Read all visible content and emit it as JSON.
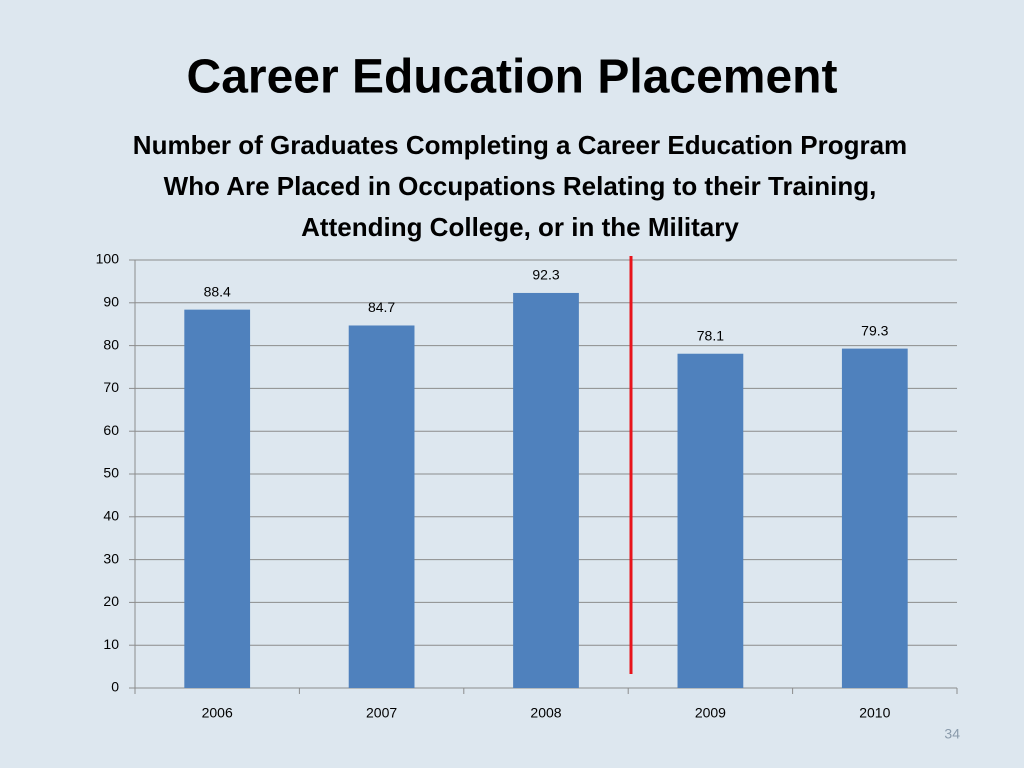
{
  "chart_data": {
    "type": "bar",
    "title": "Career Education Placement",
    "subtitle": [
      "Number of Graduates Completing a Career Education Program",
      "Who Are Placed in Occupations Relating to their Training,",
      "Attending College, or in the Military"
    ],
    "categories": [
      "2006",
      "2007",
      "2008",
      "2009",
      "2010"
    ],
    "values": [
      88.4,
      84.7,
      92.3,
      78.1,
      79.3
    ],
    "color": "#4f81bd",
    "ylim": [
      0,
      100
    ],
    "yticks": [
      0,
      10,
      20,
      30,
      40,
      50,
      60,
      70,
      80,
      90,
      100
    ],
    "grid": true
  },
  "page_number": "34"
}
